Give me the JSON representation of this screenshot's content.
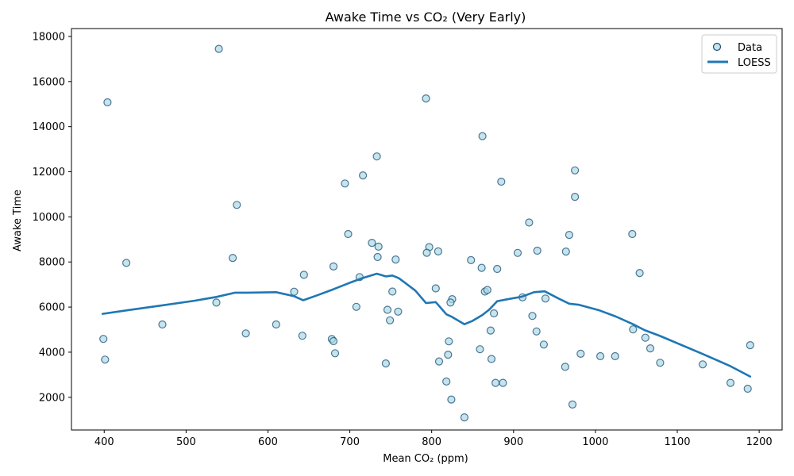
{
  "chart_data": {
    "type": "scatter",
    "title": "Awake Time vs CO₂ (Very Early)",
    "xlabel": "Mean CO₂ (ppm)",
    "ylabel": "Awake Time",
    "xlim": [
      360,
      1228
    ],
    "ylim": [
      550,
      18350
    ],
    "xticks": [
      400,
      500,
      600,
      700,
      800,
      900,
      1000,
      1100,
      1200
    ],
    "yticks": [
      2000,
      4000,
      6000,
      8000,
      10000,
      12000,
      14000,
      16000,
      18000
    ],
    "grid": false,
    "legend_position": "top-right",
    "colors": {
      "marker_fill": "#add8e6",
      "marker_edge": "#1a4d73",
      "loess": "#1f77b4"
    },
    "series": [
      {
        "name": "Data",
        "kind": "scatter",
        "points": [
          [
            540,
            17450
          ],
          [
            404,
            15080
          ],
          [
            793,
            15250
          ],
          [
            862,
            13580
          ],
          [
            733,
            12680
          ],
          [
            975,
            12060
          ],
          [
            716,
            11840
          ],
          [
            694,
            11480
          ],
          [
            885,
            11560
          ],
          [
            975,
            10890
          ],
          [
            562,
            10530
          ],
          [
            919,
            9750
          ],
          [
            698,
            9240
          ],
          [
            968,
            9200
          ],
          [
            1045,
            9240
          ],
          [
            727,
            8850
          ],
          [
            735,
            8680
          ],
          [
            797,
            8660
          ],
          [
            794,
            8410
          ],
          [
            808,
            8470
          ],
          [
            905,
            8400
          ],
          [
            929,
            8500
          ],
          [
            964,
            8460
          ],
          [
            557,
            8180
          ],
          [
            734,
            8220
          ],
          [
            756,
            8110
          ],
          [
            848,
            8080
          ],
          [
            427,
            7960
          ],
          [
            680,
            7800
          ],
          [
            861,
            7740
          ],
          [
            880,
            7690
          ],
          [
            644,
            7430
          ],
          [
            712,
            7330
          ],
          [
            1054,
            7510
          ],
          [
            632,
            6680
          ],
          [
            752,
            6690
          ],
          [
            805,
            6830
          ],
          [
            865,
            6690
          ],
          [
            868,
            6760
          ],
          [
            911,
            6430
          ],
          [
            939,
            6380
          ],
          [
            825,
            6350
          ],
          [
            537,
            6200
          ],
          [
            823,
            6200
          ],
          [
            708,
            6010
          ],
          [
            746,
            5880
          ],
          [
            759,
            5800
          ],
          [
            876,
            5720
          ],
          [
            923,
            5610
          ],
          [
            471,
            5230
          ],
          [
            610,
            5230
          ],
          [
            749,
            5410
          ],
          [
            1046,
            5010
          ],
          [
            573,
            4830
          ],
          [
            642,
            4730
          ],
          [
            928,
            4920
          ],
          [
            872,
            4960
          ],
          [
            1061,
            4640
          ],
          [
            399,
            4590
          ],
          [
            678,
            4580
          ],
          [
            680,
            4490
          ],
          [
            821,
            4480
          ],
          [
            937,
            4340
          ],
          [
            1189,
            4310
          ],
          [
            859,
            4130
          ],
          [
            1067,
            4170
          ],
          [
            682,
            3950
          ],
          [
            820,
            3890
          ],
          [
            982,
            3930
          ],
          [
            1006,
            3820
          ],
          [
            1024,
            3820
          ],
          [
            401,
            3670
          ],
          [
            873,
            3700
          ],
          [
            809,
            3590
          ],
          [
            1079,
            3530
          ],
          [
            744,
            3500
          ],
          [
            963,
            3350
          ],
          [
            1131,
            3460
          ],
          [
            818,
            2700
          ],
          [
            878,
            2640
          ],
          [
            887,
            2640
          ],
          [
            1165,
            2640
          ],
          [
            1186,
            2380
          ],
          [
            824,
            1900
          ],
          [
            972,
            1680
          ],
          [
            840,
            1110
          ]
        ]
      },
      {
        "name": "LOESS",
        "kind": "line",
        "points": [
          [
            398,
            5700
          ],
          [
            430,
            5870
          ],
          [
            470,
            6070
          ],
          [
            510,
            6280
          ],
          [
            537,
            6450
          ],
          [
            560,
            6640
          ],
          [
            575,
            6640
          ],
          [
            610,
            6660
          ],
          [
            632,
            6480
          ],
          [
            643,
            6300
          ],
          [
            660,
            6520
          ],
          [
            680,
            6790
          ],
          [
            700,
            7080
          ],
          [
            716,
            7290
          ],
          [
            733,
            7480
          ],
          [
            744,
            7360
          ],
          [
            752,
            7400
          ],
          [
            760,
            7280
          ],
          [
            780,
            6730
          ],
          [
            793,
            6180
          ],
          [
            805,
            6220
          ],
          [
            818,
            5680
          ],
          [
            825,
            5560
          ],
          [
            840,
            5240
          ],
          [
            850,
            5390
          ],
          [
            862,
            5650
          ],
          [
            870,
            5880
          ],
          [
            880,
            6260
          ],
          [
            890,
            6330
          ],
          [
            910,
            6460
          ],
          [
            925,
            6660
          ],
          [
            938,
            6700
          ],
          [
            955,
            6380
          ],
          [
            968,
            6150
          ],
          [
            980,
            6100
          ],
          [
            1005,
            5850
          ],
          [
            1025,
            5580
          ],
          [
            1046,
            5240
          ],
          [
            1060,
            4980
          ],
          [
            1079,
            4720
          ],
          [
            1131,
            3920
          ],
          [
            1165,
            3380
          ],
          [
            1189,
            2920
          ]
        ]
      }
    ]
  }
}
